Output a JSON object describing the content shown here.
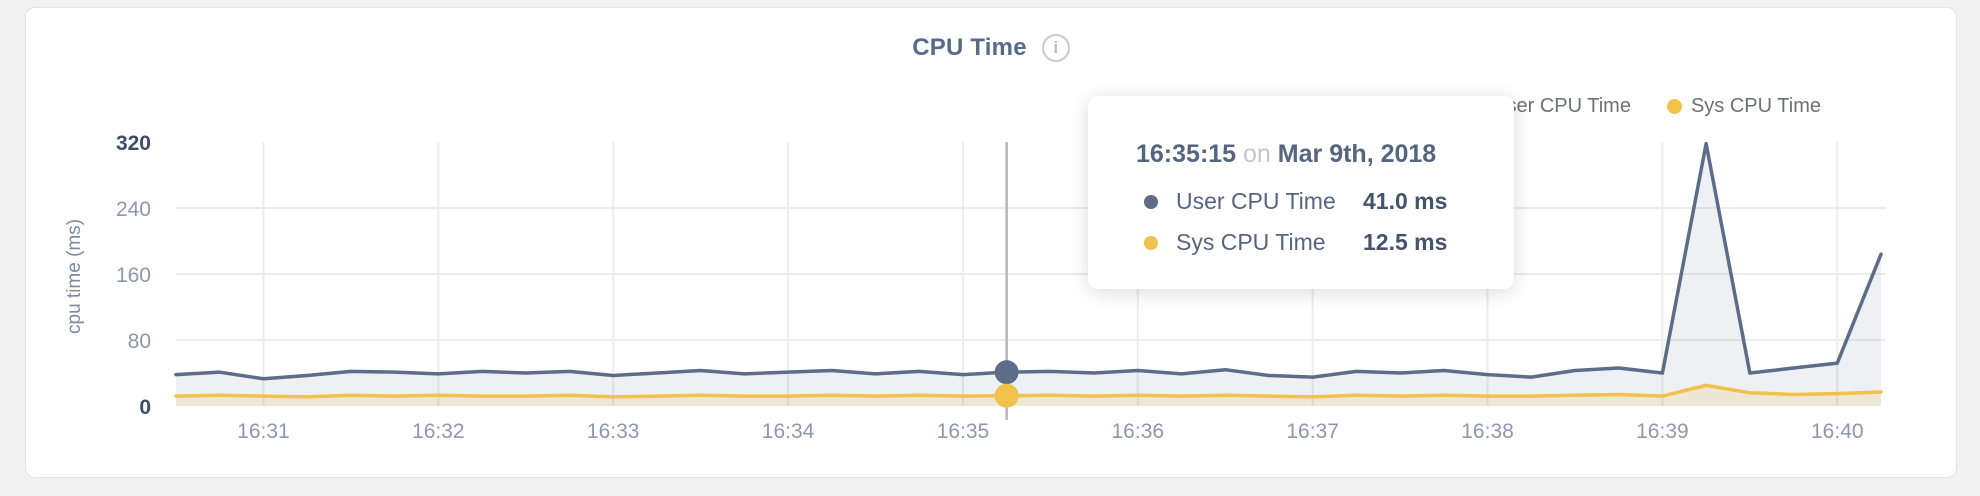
{
  "header": {
    "title": "CPU Time",
    "info_icon": "i"
  },
  "legend": {
    "items": [
      {
        "label": "User CPU Time",
        "color": "#5d6c89"
      },
      {
        "label": "Sys CPU Time",
        "color": "#f0c14b"
      }
    ]
  },
  "tooltip": {
    "time": "16:35:15",
    "conj": "on",
    "date": "Mar 9th, 2018",
    "rows": [
      {
        "label": "User CPU Time",
        "value": "41.0 ms",
        "color": "#5d6c89"
      },
      {
        "label": "Sys CPU Time",
        "value": "12.5 ms",
        "color": "#f0c14b"
      }
    ]
  },
  "chart_data": {
    "type": "area",
    "title": "CPU Time",
    "ylabel": "cpu time (ms)",
    "xlabel": "",
    "ylim": [
      0,
      320
    ],
    "y_ticks": [
      0,
      80,
      160,
      240,
      320
    ],
    "y_gridlines": [
      80,
      160,
      240
    ],
    "grid": true,
    "legend_position": "top-right",
    "x_start": "16:30:30",
    "x_step_seconds": 15,
    "x_ticks": [
      {
        "label": "16:31",
        "i": 2
      },
      {
        "label": "16:32",
        "i": 6
      },
      {
        "label": "16:33",
        "i": 10
      },
      {
        "label": "16:34",
        "i": 14
      },
      {
        "label": "16:35",
        "i": 18
      },
      {
        "label": "16:36",
        "i": 22
      },
      {
        "label": "16:37",
        "i": 26
      },
      {
        "label": "16:38",
        "i": 30
      },
      {
        "label": "16:39",
        "i": 34
      },
      {
        "label": "16:40",
        "i": 38
      }
    ],
    "series": [
      {
        "name": "User CPU Time",
        "color": "#5d6c89",
        "fill": "rgba(93,108,137,0.10)",
        "values": [
          38,
          41,
          33,
          37,
          42,
          41,
          39,
          42,
          40,
          42,
          37,
          40,
          43,
          39,
          41,
          43,
          39,
          42,
          38,
          41,
          42,
          40,
          43,
          39,
          44,
          37,
          35,
          42,
          40,
          43,
          38,
          35,
          43,
          46,
          40,
          318,
          40,
          46,
          52,
          184
        ]
      },
      {
        "name": "Sys CPU Time",
        "color": "#f0c14b",
        "fill": "rgba(240,193,75,0.18)",
        "values": [
          12,
          13,
          12,
          11,
          13,
          12,
          13,
          12,
          12,
          13,
          11,
          12,
          13,
          12,
          12,
          13,
          12,
          13,
          12,
          12.5,
          13,
          12,
          13,
          12,
          13,
          12,
          11,
          13,
          12,
          13,
          12,
          12,
          13,
          14,
          12,
          25,
          16,
          14,
          15,
          17
        ]
      }
    ],
    "hover": {
      "index": 19,
      "time": "16:35:15",
      "values": [
        41.0,
        12.5
      ],
      "line_color": "#b9b9bb"
    },
    "colors": {
      "gridline": "#ececec",
      "tick_dark": "#3d4d68",
      "tick_light": "#8d98ac"
    }
  }
}
